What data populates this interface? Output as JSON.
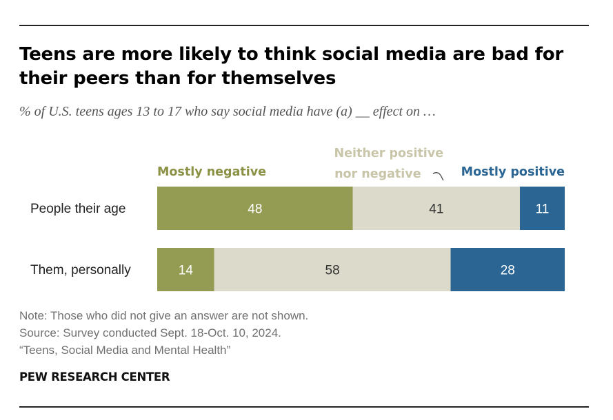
{
  "title": "Teens are more likely to think social media are bad for their peers than for themselves",
  "subtitle": "% of U.S. teens ages 13 to 17 who say social media have (a) __ effect on …",
  "chart_data": {
    "type": "bar",
    "orientation": "horizontal",
    "stacked": true,
    "categories": [
      "People their age",
      "Them, personally"
    ],
    "series": [
      {
        "name": "Mostly negative",
        "values": [
          48,
          14
        ],
        "color": "#949b53"
      },
      {
        "name": "Neither positive nor negative",
        "label_lines": [
          "Neither positive",
          "nor negative"
        ],
        "values": [
          41,
          58
        ],
        "color": "#dcdacb"
      },
      {
        "name": "Mostly positive",
        "values": [
          11,
          28
        ],
        "color": "#2a6593"
      }
    ],
    "label_colors": [
      "#ffffff",
      "#333333",
      "#ffffff"
    ],
    "legend_text_colors": [
      "#8b9145",
      "#c8c5a8",
      "#2a6593"
    ],
    "legend_placement": "top, above bars",
    "xlim": [
      0,
      100
    ],
    "grid": false
  },
  "footer": {
    "note": "Note: Those who did not give an answer are not shown.",
    "source": "Source: Survey conducted Sept. 18-Oct. 10, 2024.",
    "report": "“Teens, Social Media and Mental Health”"
  },
  "brand": "PEW RESEARCH CENTER"
}
